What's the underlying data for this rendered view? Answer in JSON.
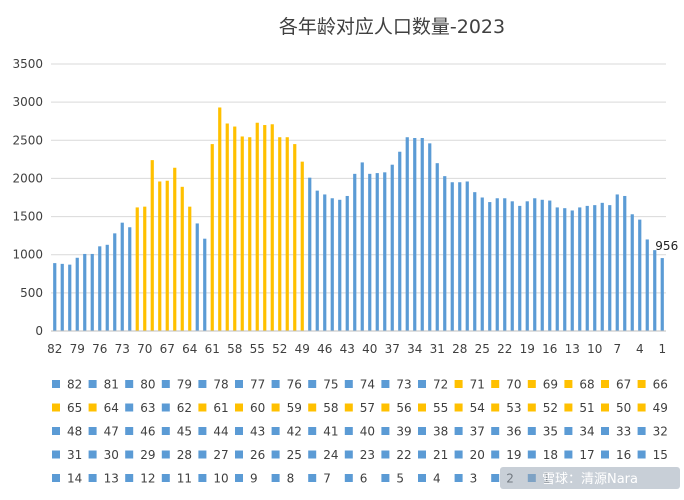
{
  "chart_data": {
    "type": "bar",
    "title": "各年龄对应人口数量-2023",
    "xlabel": "",
    "ylabel": "",
    "ylim": [
      0,
      3500
    ],
    "yticks": [
      0,
      500,
      1000,
      1500,
      2000,
      2500,
      3000,
      3500
    ],
    "grid": true,
    "legend_position": "bottom",
    "categories": [
      "82",
      "81",
      "80",
      "79",
      "78",
      "77",
      "76",
      "75",
      "74",
      "73",
      "72",
      "71",
      "70",
      "69",
      "68",
      "67",
      "66",
      "65",
      "64",
      "63",
      "62",
      "61",
      "60",
      "59",
      "58",
      "57",
      "56",
      "55",
      "54",
      "53",
      "52",
      "51",
      "50",
      "49",
      "48",
      "47",
      "46",
      "45",
      "44",
      "43",
      "42",
      "41",
      "40",
      "39",
      "38",
      "37",
      "36",
      "35",
      "34",
      "33",
      "32",
      "31",
      "30",
      "29",
      "28",
      "27",
      "26",
      "25",
      "24",
      "23",
      "22",
      "21",
      "20",
      "19",
      "18",
      "17",
      "16",
      "15",
      "14",
      "13",
      "12",
      "11",
      "10",
      "9",
      "8",
      "7",
      "6",
      "5",
      "4",
      "3",
      "2",
      "1"
    ],
    "x_tick_labels": [
      "82",
      "79",
      "76",
      "73",
      "70",
      "67",
      "64",
      "61",
      "58",
      "55",
      "52",
      "49",
      "46",
      "43",
      "40",
      "37",
      "34",
      "31",
      "28",
      "25",
      "22",
      "19",
      "16",
      "13",
      "10",
      "7",
      "4",
      "1"
    ],
    "values": [
      890,
      880,
      870,
      960,
      1010,
      1010,
      1110,
      1130,
      1280,
      1420,
      1360,
      1620,
      1630,
      2240,
      1960,
      1970,
      2140,
      1890,
      1630,
      1410,
      1210,
      2450,
      2930,
      2720,
      2680,
      2550,
      2540,
      2730,
      2700,
      2710,
      2540,
      2540,
      2450,
      2220,
      2010,
      1840,
      1790,
      1740,
      1720,
      1770,
      2060,
      2210,
      2060,
      2070,
      2080,
      2180,
      2350,
      2540,
      2530,
      2530,
      2460,
      2200,
      2030,
      1950,
      1950,
      1960,
      1820,
      1750,
      1690,
      1740,
      1740,
      1700,
      1640,
      1700,
      1740,
      1720,
      1710,
      1620,
      1610,
      1580,
      1620,
      1640,
      1650,
      1680,
      1650,
      1790,
      1770,
      1530,
      1460,
      1200,
      1060,
      956
    ],
    "highlight_colors": {
      "default": "#5b9bd5",
      "highlight": "#ffc000"
    },
    "highlight_ranges": [
      [
        49,
        71
      ],
      [
        50,
        60
      ]
    ],
    "bar_highlight": [
      0,
      0,
      0,
      0,
      0,
      0,
      0,
      0,
      0,
      0,
      0,
      1,
      1,
      1,
      1,
      1,
      1,
      1,
      1,
      0,
      0,
      1,
      1,
      1,
      1,
      1,
      1,
      1,
      1,
      1,
      1,
      1,
      1,
      1,
      0,
      0,
      0,
      0,
      0,
      0,
      0,
      0,
      0,
      0,
      0,
      0,
      0,
      0,
      0,
      0,
      0,
      0,
      0,
      0,
      0,
      0,
      0,
      0,
      0,
      0,
      0,
      0,
      0,
      0,
      0,
      0,
      0,
      0,
      0,
      0,
      0,
      0,
      0,
      0,
      0,
      0,
      0,
      0,
      0,
      0,
      0,
      0
    ],
    "data_label": {
      "category": "1",
      "text": "956"
    },
    "legend_entries": [
      "82",
      "81",
      "80",
      "79",
      "78",
      "77",
      "76",
      "75",
      "74",
      "73",
      "72",
      "71",
      "70",
      "69",
      "68",
      "67",
      "66",
      "65",
      "64",
      "63",
      "62",
      "61",
      "60",
      "59",
      "58",
      "57",
      "56",
      "55",
      "54",
      "53",
      "52",
      "51",
      "50",
      "49",
      "48",
      "47",
      "46",
      "45",
      "44",
      "43",
      "42",
      "41",
      "40",
      "39",
      "38",
      "37",
      "36",
      "35",
      "34",
      "33",
      "32",
      "31",
      "30",
      "29",
      "28",
      "27",
      "26",
      "25",
      "24",
      "23",
      "22",
      "21",
      "20",
      "19",
      "18",
      "17",
      "16",
      "15",
      "14",
      "13",
      "12",
      "11",
      "10",
      "9",
      "8",
      "7",
      "6",
      "5",
      "4",
      "3",
      "2",
      "1"
    ]
  },
  "watermark": "雪球：清源Nara"
}
